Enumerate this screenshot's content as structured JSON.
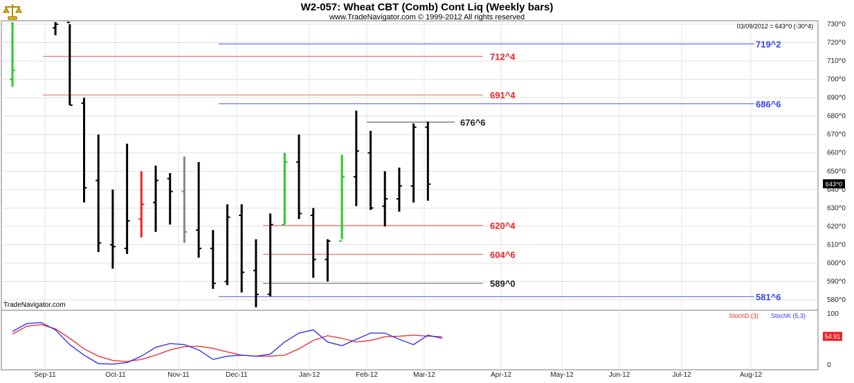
{
  "header": {
    "title": "W2-057:  Wheat CBT (Comb) Cont Liq  (Weekly bars)",
    "copyright": "www.TradeNavigator.com © 1999-2012 All rights reserved",
    "quote": "03/09/2012 = 643^0 (-30^4)",
    "watermark": "TradeNavigator.com",
    "logo_icon": "scales-icon"
  },
  "chart_data": [
    {
      "type": "bar",
      "style": "ohlc",
      "y_ticks": [
        "580^0",
        "590^0",
        "600^0",
        "610^0",
        "620^0",
        "630^0",
        "640^0",
        "650^0",
        "660^0",
        "670^0",
        "680^0",
        "690^0",
        "700^0",
        "710^0",
        "720^0",
        "730^0"
      ],
      "ylim": [
        576,
        732
      ],
      "x_ticks": [
        "Sep-11",
        "Oct-11",
        "Nov-11",
        "Dec-11",
        "Jan-12",
        "Feb-12",
        "Mar-12",
        "Apr-12",
        "May-12",
        "Jun-12",
        "Jul-12",
        "Aug-12"
      ],
      "last_price_label": "643^0",
      "colors": {
        "bar": "#000000",
        "up": "#22cc22",
        "down": "#ee2222",
        "neutral": "#888888"
      },
      "bars": [
        {
          "week": 0,
          "o": 700,
          "h": 743,
          "l": 696,
          "c": 705,
          "color": "up"
        },
        {
          "week": 3,
          "o": 728,
          "h": 760,
          "l": 724,
          "c": 730,
          "color": "bar"
        },
        {
          "week": 4,
          "o": 731,
          "h": 730,
          "l": 686,
          "c": 686,
          "color": "bar"
        },
        {
          "week": 5,
          "o": 687,
          "h": 690,
          "l": 633,
          "c": 641,
          "color": "bar"
        },
        {
          "week": 6,
          "o": 645,
          "h": 670,
          "l": 606,
          "c": 611,
          "color": "bar"
        },
        {
          "week": 7,
          "o": 610,
          "h": 640,
          "l": 597,
          "c": 609,
          "color": "bar"
        },
        {
          "week": 8,
          "o": 608,
          "h": 665,
          "l": 605,
          "c": 623,
          "color": "bar"
        },
        {
          "week": 9,
          "o": 624,
          "h": 650,
          "l": 614,
          "c": 632,
          "color": "down"
        },
        {
          "week": 10,
          "o": 633,
          "h": 653,
          "l": 617,
          "c": 645,
          "color": "bar"
        },
        {
          "week": 11,
          "o": 646,
          "h": 649,
          "l": 621,
          "c": 639,
          "color": "bar"
        },
        {
          "week": 12,
          "o": 639,
          "h": 658,
          "l": 611,
          "c": 617,
          "color": "neutral"
        },
        {
          "week": 13,
          "o": 618,
          "h": 655,
          "l": 603,
          "c": 608,
          "color": "bar"
        },
        {
          "week": 14,
          "o": 608,
          "h": 618,
          "l": 586,
          "c": 589,
          "color": "bar"
        },
        {
          "week": 15,
          "o": 590,
          "h": 632,
          "l": 588,
          "c": 625,
          "color": "bar"
        },
        {
          "week": 16,
          "o": 626,
          "h": 632,
          "l": 584,
          "c": 595,
          "color": "bar"
        },
        {
          "week": 17,
          "o": 596,
          "h": 613,
          "l": 576,
          "c": 583,
          "color": "bar"
        },
        {
          "week": 18,
          "o": 583,
          "h": 627,
          "l": 582,
          "c": 621,
          "color": "bar"
        },
        {
          "week": 19,
          "o": 621,
          "h": 660,
          "l": 621,
          "c": 655,
          "color": "up"
        },
        {
          "week": 20,
          "o": 655,
          "h": 670,
          "l": 624,
          "c": 627,
          "color": "bar"
        },
        {
          "week": 21,
          "o": 626,
          "h": 630,
          "l": 592,
          "c": 602,
          "color": "bar"
        },
        {
          "week": 22,
          "o": 602,
          "h": 613,
          "l": 590,
          "c": 612,
          "color": "bar"
        },
        {
          "week": 23,
          "o": 612,
          "h": 659,
          "l": 613,
          "c": 647,
          "color": "up"
        },
        {
          "week": 24,
          "o": 647,
          "h": 683,
          "l": 631,
          "c": 661,
          "color": "bar"
        },
        {
          "week": 25,
          "o": 660,
          "h": 672,
          "l": 629,
          "c": 630,
          "color": "bar"
        },
        {
          "week": 26,
          "o": 631,
          "h": 650,
          "l": 620,
          "c": 635,
          "color": "bar"
        },
        {
          "week": 27,
          "o": 635,
          "h": 652,
          "l": 628,
          "c": 642,
          "color": "bar"
        },
        {
          "week": 28,
          "o": 642,
          "h": 676,
          "l": 633,
          "c": 674,
          "color": "bar"
        },
        {
          "week": 29,
          "o": 674,
          "h": 677,
          "l": 634,
          "c": 643,
          "color": "bar"
        }
      ],
      "levels": [
        {
          "label": "719^2",
          "value": 719.25,
          "color": "blue",
          "from_week": 12
        },
        {
          "label": "712^4",
          "value": 712.5,
          "color": "red",
          "from_week": 1
        },
        {
          "label": "691^4",
          "value": 691.5,
          "color": "red",
          "from_week": 1
        },
        {
          "label": "686^6",
          "value": 686.75,
          "color": "blue",
          "from_week": 12
        },
        {
          "label": "676^6",
          "value": 676.75,
          "color": "black",
          "from_week": 24
        },
        {
          "label": "620^4",
          "value": 620.5,
          "color": "red",
          "from_week": 17
        },
        {
          "label": "604^6",
          "value": 604.75,
          "color": "red",
          "from_week": 17
        },
        {
          "label": "589^0",
          "value": 589.0,
          "color": "black",
          "from_week": 17
        },
        {
          "label": "581^6",
          "value": 581.75,
          "color": "blue",
          "from_week": 12
        }
      ]
    },
    {
      "type": "line",
      "legend": [
        "StochD (3)",
        "StochK (5,3)"
      ],
      "y_ticks": [
        "0",
        "100"
      ],
      "ylim": [
        0,
        100
      ],
      "last_value_label": "54.91",
      "series": [
        {
          "name": "StochD (3)",
          "color": "#ee3333",
          "values": [
            60,
            75,
            78,
            70,
            52,
            32,
            18,
            10,
            8,
            12,
            20,
            30,
            36,
            37,
            33,
            26,
            20,
            18,
            18,
            20,
            32,
            48,
            57,
            52,
            45,
            48,
            55,
            56,
            58,
            56,
            55
          ]
        },
        {
          "name": "StochK (5,3)",
          "color": "#3333ee",
          "values": [
            65,
            80,
            82,
            68,
            40,
            20,
            4,
            3,
            6,
            18,
            35,
            42,
            40,
            30,
            12,
            18,
            20,
            18,
            22,
            45,
            62,
            68,
            45,
            38,
            50,
            62,
            62,
            50,
            40,
            58,
            52
          ]
        }
      ]
    }
  ]
}
